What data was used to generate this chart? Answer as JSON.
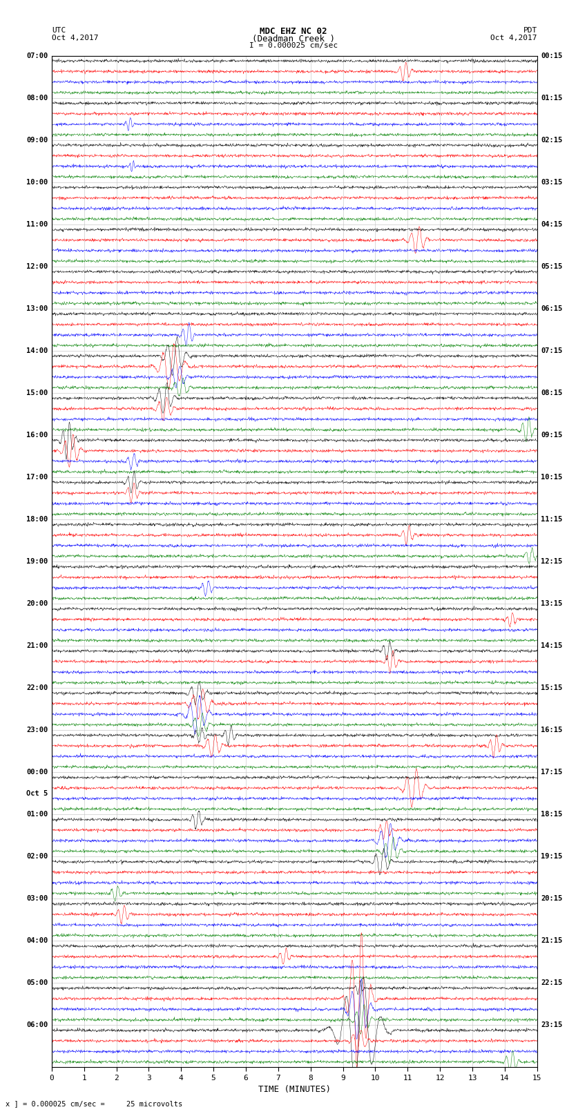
{
  "title_line1": "MDC EHZ NC 02",
  "title_line2": "(Deadman Creek )",
  "title_line3": "I = 0.000025 cm/sec",
  "left_header_top": "UTC",
  "left_header_bot": "Oct 4,2017",
  "right_header_top": "PDT",
  "right_header_bot": "Oct 4,2017",
  "xlabel": "TIME (MINUTES)",
  "footer": "x ] = 0.000025 cm/sec =     25 microvolts",
  "xlim": [
    0,
    15
  ],
  "xticks": [
    0,
    1,
    2,
    3,
    4,
    5,
    6,
    7,
    8,
    9,
    10,
    11,
    12,
    13,
    14,
    15
  ],
  "background_color": "#ffffff",
  "trace_color_cycle": [
    "black",
    "red",
    "blue",
    "green"
  ],
  "noise_amplitude": 0.18,
  "samples_per_row": 1500,
  "utc_labels": [
    "07:00",
    "08:00",
    "09:00",
    "10:00",
    "11:00",
    "12:00",
    "13:00",
    "14:00",
    "15:00",
    "16:00",
    "17:00",
    "18:00",
    "19:00",
    "20:00",
    "21:00",
    "22:00",
    "23:00",
    "00:00",
    "01:00",
    "02:00",
    "03:00",
    "04:00",
    "05:00",
    "06:00"
  ],
  "pdt_labels": [
    "00:15",
    "01:15",
    "02:15",
    "03:15",
    "04:15",
    "05:15",
    "06:15",
    "07:15",
    "08:15",
    "09:15",
    "10:15",
    "11:15",
    "12:15",
    "13:15",
    "14:15",
    "15:15",
    "16:15",
    "17:15",
    "18:15",
    "19:15",
    "20:15",
    "21:15",
    "22:15",
    "23:15"
  ],
  "oct5_hour_index": 17,
  "n_hours": 24,
  "traces_per_hour": 4
}
